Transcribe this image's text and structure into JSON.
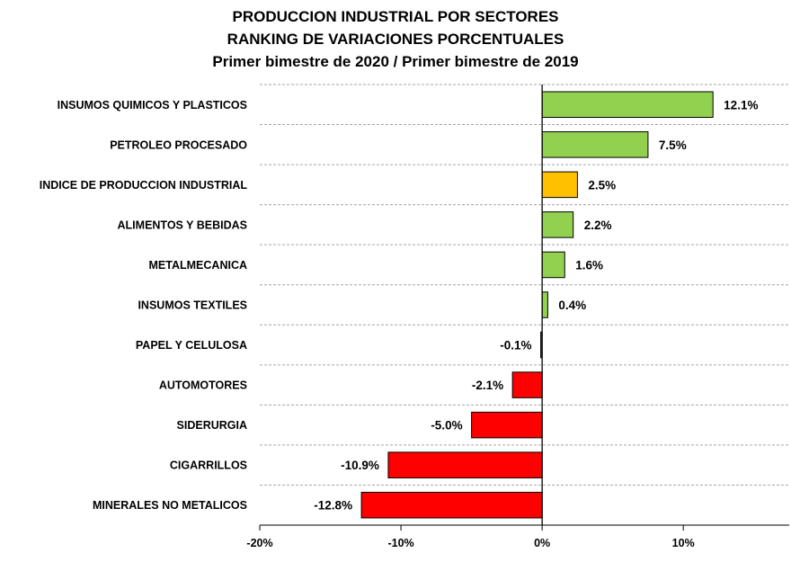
{
  "chart_data": {
    "type": "bar",
    "orientation": "horizontal",
    "title_lines": [
      "PRODUCCION INDUSTRIAL POR SECTORES",
      "RANKING DE VARIACIONES PORCENTUALES",
      "Primer bimestre de 2020 / Primer bimestre de 2019"
    ],
    "categories": [
      "INSUMOS QUIMICOS Y PLASTICOS",
      "PETROLEO PROCESADO",
      "INDICE DE PRODUCCION INDUSTRIAL",
      "ALIMENTOS Y BEBIDAS",
      "METALMECANICA",
      "INSUMOS TEXTILES",
      "PAPEL Y CELULOSA",
      "AUTOMOTORES",
      "SIDERURGIA",
      "CIGARRILLOS",
      "MINERALES NO METALICOS"
    ],
    "values": [
      12.1,
      7.5,
      2.5,
      2.2,
      1.6,
      0.4,
      -0.1,
      -2.1,
      -5.0,
      -10.9,
      -12.8
    ],
    "value_labels": [
      "12.1%",
      "7.5%",
      "2.5%",
      "2.2%",
      "1.6%",
      "0.4%",
      "-0.1%",
      "-2.1%",
      "-5.0%",
      "-10.9%",
      "-12.8%"
    ],
    "highlight_category": "INDICE DE PRODUCCION INDUSTRIAL",
    "xlim": [
      -20,
      17.5
    ],
    "xticks": [
      -20,
      -10,
      0,
      10
    ],
    "xtick_labels": [
      "-20%",
      "-10%",
      "0%",
      "10%"
    ],
    "grid": "horizontal dashed",
    "colors": {
      "positive": "#92d050",
      "highlight": "#ffc000",
      "negative": "#ff0000",
      "outline": "#000000",
      "grid": "#a6a6a6"
    }
  }
}
